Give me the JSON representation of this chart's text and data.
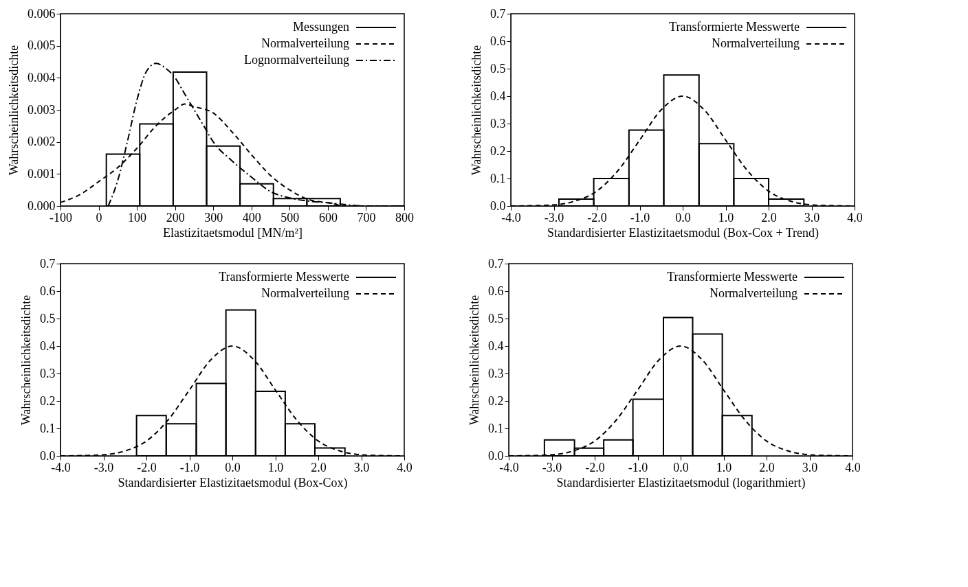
{
  "chart_data": [
    {
      "type": "histogram",
      "xlabel": "Elastizitaetsmodul [MN/m²]",
      "ylabel": "Wahrscheinlichkeitsdichte",
      "legend": "top right",
      "xlim": [
        -100,
        800
      ],
      "xticks": [
        -100,
        0,
        100,
        200,
        300,
        400,
        500,
        600,
        700,
        800
      ],
      "ylim": [
        0,
        0.006
      ],
      "yticks": [
        {
          "value": 0,
          "label": "0.000"
        },
        {
          "value": 0.001,
          "label": "0.001"
        },
        {
          "value": 0.002,
          "label": "0.002"
        },
        {
          "value": 0.003,
          "label": "0.003"
        },
        {
          "value": 0.004,
          "label": "0.004"
        },
        {
          "value": 0.005,
          "label": "0.005"
        },
        {
          "value": 0.006,
          "label": "0.006"
        }
      ],
      "series": [
        {
          "name": "Messungen",
          "color": "#000000",
          "line_style": "solid",
          "bins": [
            20,
            107.5,
            195,
            282.5,
            370,
            457.5,
            545,
            632.5
          ],
          "values": [
            0.00162,
            0.00256,
            0.00418,
            0.00187,
            0.00069,
            0.00023,
            0.00023
          ]
        },
        {
          "name": "Normalverteilung",
          "type": "line",
          "color": "#000000",
          "line_style": "dashed",
          "x": [
            -100,
            -50,
            0,
            50,
            100,
            150,
            200,
            225,
            250,
            300,
            350,
            400,
            450,
            500,
            550,
            600,
            650,
            700,
            800
          ],
          "values": [
            0.00011,
            0.00035,
            0.00076,
            0.0012,
            0.0018,
            0.0025,
            0.003,
            0.00318,
            0.0031,
            0.0029,
            0.0023,
            0.0016,
            0.00095,
            0.0005,
            0.0002,
            0.0001,
            0,
            0,
            0
          ]
        },
        {
          "name": "Lognormalverteilung",
          "type": "line",
          "color": "#000000",
          "line_style": "dashdot",
          "x": [
            25,
            50,
            75,
            100,
            125,
            150,
            175,
            200,
            225,
            250,
            275,
            300,
            350,
            400,
            450,
            500,
            550,
            600,
            700,
            800
          ],
          "values": [
            0,
            0.0008,
            0.002,
            0.0033,
            0.0042,
            0.00445,
            0.0043,
            0.004,
            0.0035,
            0.003,
            0.0025,
            0.002,
            0.0014,
            0.0009,
            0.00045,
            0.00025,
            0.00015,
            0.0001,
            0,
            0
          ]
        }
      ]
    },
    {
      "type": "histogram",
      "xlabel": "Standardisierter Elastizitaetsmodul (Box-Cox + Trend)",
      "ylabel": "Wahrscheinlichkeitsdichte",
      "legend": "top right",
      "xlim": [
        -4,
        4
      ],
      "xticks": [
        {
          "value": -4,
          "label": "-4.0"
        },
        {
          "value": -3,
          "label": "-3.0"
        },
        {
          "value": -2,
          "label": "-2.0"
        },
        {
          "value": -1,
          "label": "-1.0"
        },
        {
          "value": 0,
          "label": "0.0"
        },
        {
          "value": 1,
          "label": "1.0"
        },
        {
          "value": 2,
          "label": "2.0"
        },
        {
          "value": 3,
          "label": "3.0"
        },
        {
          "value": 4,
          "label": "4.0"
        }
      ],
      "ylim": [
        0,
        0.7
      ],
      "yticks": [
        {
          "value": 0,
          "label": "0.0"
        },
        0.1,
        0.2,
        0.3,
        0.4,
        0.5,
        0.6,
        0.7
      ],
      "series": [
        {
          "name": "Transformierte Messwerte",
          "color": "#000000",
          "line_style": "solid",
          "bins": [
            -2.88,
            -2.07,
            -1.25,
            -0.44,
            0.38,
            1.19,
            2.0,
            2.82
          ],
          "values": [
            0.025,
            0.1,
            0.276,
            0.477,
            0.227,
            0.1,
            0.025
          ]
        },
        {
          "name": "Normalverteilung",
          "type": "line",
          "color": "#000000",
          "line_style": "dashed",
          "x": [
            -4,
            -3.5,
            -3,
            -2.5,
            -2,
            -1.5,
            -1,
            -0.5,
            0,
            0.5,
            1,
            1.5,
            2,
            2.5,
            3,
            3.5,
            4
          ],
          "values": [
            0,
            0.001,
            0.004,
            0.018,
            0.054,
            0.13,
            0.24,
            0.35,
            0.4,
            0.35,
            0.24,
            0.13,
            0.054,
            0.018,
            0.004,
            0.001,
            0
          ]
        }
      ]
    },
    {
      "type": "histogram",
      "xlabel": "Standardisierter Elastizitaetsmodul (Box-Cox)",
      "ylabel": "Wahrscheinlichkeitsdichte",
      "legend": "top right",
      "xlim": [
        -4,
        4
      ],
      "xticks": [
        {
          "value": -4,
          "label": "-4.0"
        },
        {
          "value": -3,
          "label": "-3.0"
        },
        {
          "value": -2,
          "label": "-2.0"
        },
        {
          "value": -1,
          "label": "-1.0"
        },
        {
          "value": 0,
          "label": "0.0"
        },
        {
          "value": 1,
          "label": "1.0"
        },
        {
          "value": 2,
          "label": "2.0"
        },
        {
          "value": 3,
          "label": "3.0"
        },
        {
          "value": 4,
          "label": "4.0"
        }
      ],
      "ylim": [
        0,
        0.7
      ],
      "yticks": [
        {
          "value": 0,
          "label": "0.0"
        },
        0.1,
        0.2,
        0.3,
        0.4,
        0.5,
        0.6,
        0.7
      ],
      "series": [
        {
          "name": "Transformierte Messwerte",
          "color": "#000000",
          "line_style": "solid",
          "bins": [
            -2.23,
            -1.54,
            -0.84,
            -0.15,
            0.54,
            1.23,
            1.92,
            2.62
          ],
          "values": [
            0.147,
            0.117,
            0.264,
            0.531,
            0.235,
            0.117,
            0.029
          ]
        },
        {
          "name": "Normalverteilung",
          "type": "line",
          "color": "#000000",
          "line_style": "dashed",
          "x": [
            -4,
            -3.5,
            -3,
            -2.5,
            -2,
            -1.5,
            -1,
            -0.5,
            0,
            0.5,
            1,
            1.5,
            2,
            2.5,
            3,
            3.5,
            4
          ],
          "values": [
            0,
            0.001,
            0.004,
            0.018,
            0.054,
            0.13,
            0.24,
            0.35,
            0.4,
            0.35,
            0.24,
            0.13,
            0.054,
            0.018,
            0.004,
            0.001,
            0
          ]
        }
      ]
    },
    {
      "type": "histogram",
      "xlabel": "Standardisierter Elastizitaetsmodul (logarithmiert)",
      "ylabel": "Wahrscheinlichkeitsdichte",
      "legend": "top right",
      "xlim": [
        -4,
        4
      ],
      "xticks": [
        {
          "value": -4,
          "label": "-4.0"
        },
        {
          "value": -3,
          "label": "-3.0"
        },
        {
          "value": -2,
          "label": "-2.0"
        },
        {
          "value": -1,
          "label": "-1.0"
        },
        {
          "value": 0,
          "label": "0.0"
        },
        {
          "value": 1,
          "label": "1.0"
        },
        {
          "value": 2,
          "label": "2.0"
        },
        {
          "value": 3,
          "label": "3.0"
        },
        {
          "value": 4,
          "label": "4.0"
        }
      ],
      "ylim": [
        0,
        0.7
      ],
      "yticks": [
        {
          "value": 0,
          "label": "0.0"
        },
        0.1,
        0.2,
        0.3,
        0.4,
        0.5,
        0.6,
        0.7
      ],
      "series": [
        {
          "name": "Transformierte Messwerte",
          "color": "#000000",
          "line_style": "solid",
          "bins": [
            -3.17,
            -2.47,
            -1.79,
            -1.11,
            -0.4,
            0.28,
            0.97,
            1.66
          ],
          "values": [
            0.058,
            0.028,
            0.058,
            0.206,
            0.504,
            0.444,
            0.147
          ]
        },
        {
          "name": "Normalverteilung",
          "type": "line",
          "color": "#000000",
          "line_style": "dashed",
          "x": [
            -4,
            -3.5,
            -3,
            -2.5,
            -2,
            -1.5,
            -1,
            -0.5,
            0,
            0.5,
            1,
            1.5,
            2,
            2.5,
            3,
            3.5,
            4
          ],
          "values": [
            0,
            0.001,
            0.004,
            0.018,
            0.054,
            0.13,
            0.24,
            0.35,
            0.4,
            0.35,
            0.24,
            0.13,
            0.054,
            0.018,
            0.004,
            0.001,
            0
          ]
        }
      ]
    }
  ]
}
